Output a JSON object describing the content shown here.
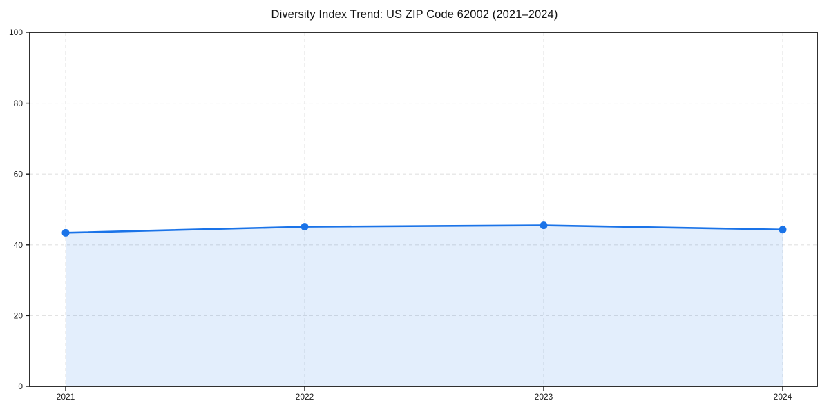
{
  "page": {
    "background_color": "#ffffff"
  },
  "chart_data": {
    "type": "area",
    "title": "Diversity Index Trend: US ZIP Code 62002 (2021–2024)",
    "categories": [
      "2021",
      "2022",
      "2023",
      "2024"
    ],
    "series": [
      {
        "name": "Diversity Index",
        "values": [
          43.4,
          45.1,
          45.5,
          44.3
        ]
      }
    ],
    "xlabel": "",
    "ylabel": "",
    "ylim": [
      0,
      100
    ],
    "yticks": [
      0,
      20,
      40,
      60,
      80,
      100
    ],
    "grid": true,
    "grid_style": "dashed",
    "legend_position": "none",
    "marker": "circle",
    "colors": {
      "line": "#1a73e8",
      "marker": "#1a73e8",
      "fill": "#1a73e8",
      "fill_opacity": 0.12,
      "grid": "#e2e2e2",
      "spine": "#1a1a1a",
      "tick_text": "#1a1a1a",
      "title_text": "#111111"
    }
  }
}
